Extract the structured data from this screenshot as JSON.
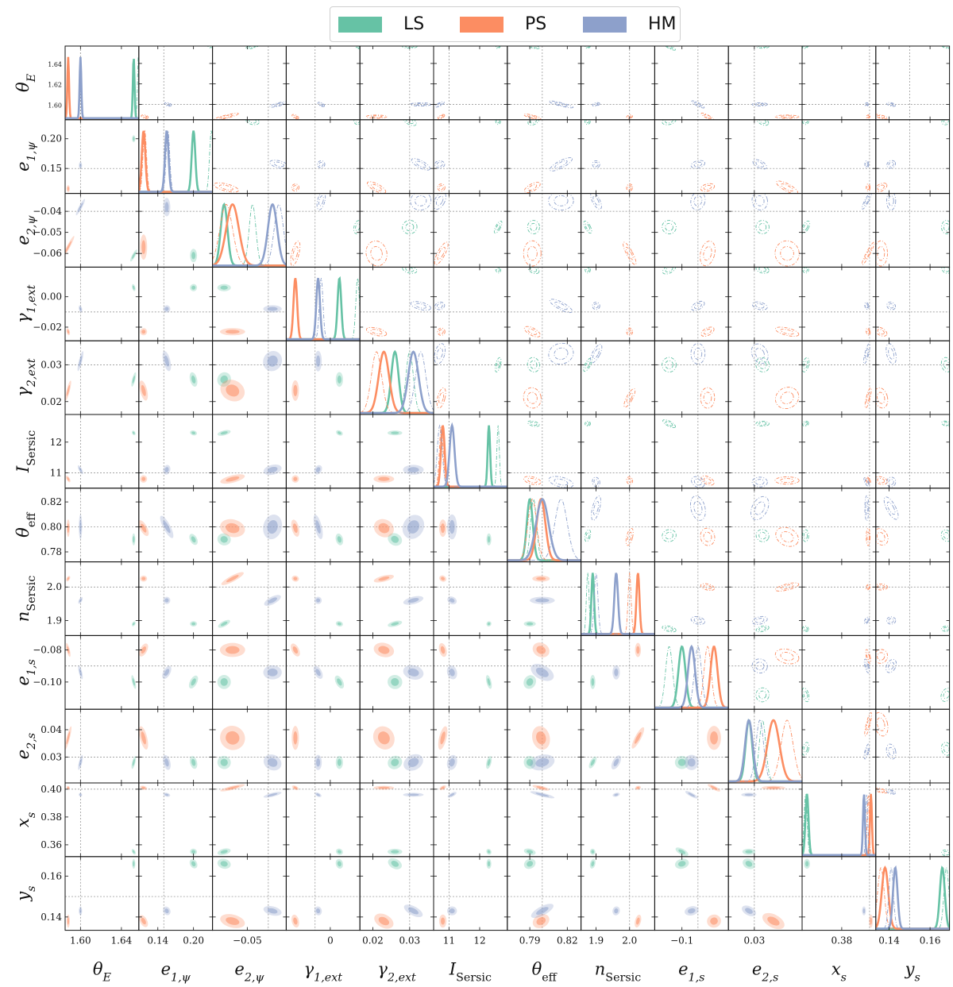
{
  "legend": [
    {
      "name": "LS",
      "color": "#66c2a5"
    },
    {
      "name": "PS",
      "color": "#fc8d62"
    },
    {
      "name": "HM",
      "color": "#8da0cb"
    }
  ],
  "chart_data": {
    "type": "scatter",
    "subtype": "corner-plot",
    "title": "",
    "description_note_free": true,
    "series_colors": {
      "LS": "#66c2a5",
      "PS": "#fc8d62",
      "HM": "#8da0cb"
    },
    "parameters": [
      {
        "label": "θ_E",
        "ticks": [
          "1.60",
          "1.64"
        ],
        "tick_values": [
          1.6,
          1.64
        ],
        "ytick_labels": [
          "1.60",
          "1.62",
          "1.64"
        ],
        "ytick_values": [
          1.6,
          1.62,
          1.64
        ],
        "range": [
          1.585,
          1.657
        ],
        "truth": 1.6
      },
      {
        "label": "e_1,ψ",
        "ticks": [
          "0.14",
          "0.20"
        ],
        "tick_values": [
          0.14,
          0.2
        ],
        "ytick_labels": [
          "0.15",
          "0.20"
        ],
        "ytick_values": [
          0.15,
          0.2
        ],
        "range": [
          0.108,
          0.232
        ],
        "truth": 0.15
      },
      {
        "label": "e_2,ψ",
        "ticks": [
          "−0.05"
        ],
        "tick_values": [
          -0.05
        ],
        "ytick_labels": [
          "−0.04",
          "−0.05",
          "−0.06"
        ],
        "ytick_values": [
          -0.04,
          -0.05,
          -0.06
        ],
        "range": [
          -0.0665,
          -0.0315
        ],
        "truth": -0.04
      },
      {
        "label": "γ_1,ext",
        "ticks": [
          "0"
        ],
        "tick_values": [
          0.0
        ],
        "ytick_labels": [
          "0.00",
          "−0.02"
        ],
        "ytick_values": [
          0.0,
          -0.02
        ],
        "range": [
          -0.029,
          0.0195
        ],
        "truth": -0.01
      },
      {
        "label": "γ_2,ext",
        "ticks": [
          "0.02",
          "0.03"
        ],
        "tick_values": [
          0.02,
          0.03
        ],
        "ytick_labels": [
          "0.03",
          "0.02"
        ],
        "ytick_values": [
          0.03,
          0.02
        ],
        "range": [
          0.0165,
          0.0365
        ],
        "truth": 0.03
      },
      {
        "label": "I_Sersic",
        "ticks": [
          "11",
          "12"
        ],
        "tick_values": [
          11,
          12
        ],
        "ytick_labels": [
          "12",
          "11"
        ],
        "ytick_values": [
          12,
          11
        ],
        "range": [
          10.5,
          12.9
        ],
        "truth": 11.0
      },
      {
        "label": "θ_eff",
        "ticks": [
          "0.79",
          "0.82"
        ],
        "tick_values": [
          0.79,
          0.82
        ],
        "ytick_labels": [
          "0.82",
          "0.80",
          "0.78"
        ],
        "ytick_values": [
          0.82,
          0.8,
          0.78
        ],
        "range": [
          0.772,
          0.831
        ],
        "truth": 0.8
      },
      {
        "label": "n_Sersic",
        "ticks": [
          "1.9",
          "2.0"
        ],
        "tick_values": [
          1.9,
          2.0
        ],
        "ytick_labels": [
          "2.0",
          "1.9"
        ],
        "ytick_values": [
          2.0,
          1.9
        ],
        "range": [
          1.855,
          2.075
        ],
        "truth": 2.0
      },
      {
        "label": "e_1,s",
        "ticks": [
          "−0.1"
        ],
        "tick_values": [
          -0.1
        ],
        "ytick_labels": [
          "−0.08",
          "−0.10"
        ],
        "ytick_values": [
          -0.08,
          -0.1
        ],
        "range": [
          -0.117,
          -0.071
        ],
        "truth": -0.09
      },
      {
        "label": "e_2,s",
        "ticks": [
          "0.03"
        ],
        "tick_values": [
          0.03
        ],
        "ytick_labels": [
          "0.04",
          "0.03"
        ],
        "ytick_values": [
          0.04,
          0.03
        ],
        "range": [
          0.0205,
          0.0475
        ],
        "truth": 0.03
      },
      {
        "label": "x_s",
        "ticks": [
          "0.38"
        ],
        "tick_values": [
          0.38
        ],
        "ytick_labels": [
          "0.40",
          "0.38",
          "0.36"
        ],
        "ytick_values": [
          0.4,
          0.38,
          0.36
        ],
        "range": [
          0.3515,
          0.4045
        ],
        "truth": 0.4
      },
      {
        "label": "y_s",
        "ticks": [
          "0.14",
          "0.16"
        ],
        "tick_values": [
          0.14,
          0.16
        ],
        "ytick_labels": [
          "0.16",
          "0.14"
        ],
        "ytick_values": [
          0.16,
          0.14
        ],
        "range": [
          0.1335,
          0.1695
        ],
        "truth": 0.15
      }
    ],
    "series": [
      {
        "name": "LS",
        "means": [
          1.652,
          0.2,
          -0.061,
          0.006,
          0.026,
          12.3,
          0.79,
          1.89,
          -0.1,
          0.028,
          0.355,
          0.166
        ],
        "sigmas": [
          0.0008,
          0.003,
          0.0016,
          0.0012,
          0.001,
          0.04,
          0.0024,
          0.004,
          0.0022,
          0.0012,
          0.0011,
          0.0012
        ]
      },
      {
        "name": "PS",
        "means": [
          1.588,
          0.116,
          -0.057,
          -0.023,
          0.023,
          10.8,
          0.799,
          2.025,
          -0.08,
          0.037,
          0.401,
          0.138
        ],
        "sigmas": [
          0.0008,
          0.003,
          0.003,
          0.0012,
          0.0014,
          0.06,
          0.0035,
          0.0045,
          0.0022,
          0.0022,
          0.0007,
          0.0016
        ]
      },
      {
        "name": "HM",
        "means": [
          1.6,
          0.155,
          -0.038,
          -0.008,
          0.031,
          11.1,
          0.8,
          1.96,
          -0.094,
          0.028,
          0.396,
          0.143
        ],
        "sigmas": [
          0.0008,
          0.003,
          0.0022,
          0.0012,
          0.0014,
          0.08,
          0.005,
          0.0055,
          0.0022,
          0.0014,
          0.0007,
          0.0011
        ]
      }
    ],
    "extra_dashdot_means": {
      "LS": [
        1.6565,
        0.23,
        -0.0475,
        0.018,
        0.03,
        12.6,
        0.793,
        1.875,
        -0.108,
        0.033,
        0.354,
        0.168
      ],
      "PS": [
        1.588,
        0.118,
        -0.06,
        -0.023,
        0.021,
        10.75,
        0.792,
        2.0,
        -0.084,
        0.042,
        0.399,
        0.136
      ],
      "HM": [
        1.6,
        0.157,
        -0.035,
        -0.006,
        0.033,
        10.7,
        0.815,
        1.9,
        -0.09,
        0.032,
        0.398,
        0.141
      ]
    },
    "grid": false,
    "legend_position": "top-center"
  }
}
